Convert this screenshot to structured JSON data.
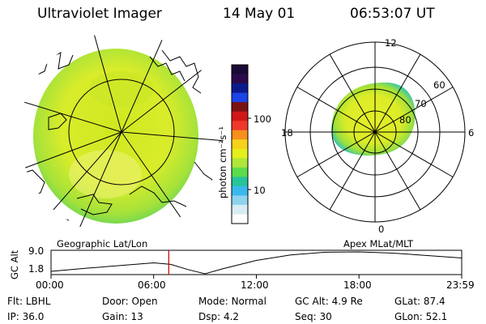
{
  "header": {
    "instrument": "Ultraviolet Imager",
    "date": "14 May 01",
    "time": "06:53:07 UT"
  },
  "colorbar": {
    "unit_label": "photon cm⁻²s⁻¹",
    "tick_labels": [
      "100",
      "10"
    ],
    "colors": [
      "#1b0a35",
      "#2b0a4a",
      "#0b1a8c",
      "#1c44e6",
      "#7a1212",
      "#d01818",
      "#f0382a",
      "#f5901c",
      "#f7d21c",
      "#e6ef1a",
      "#aee63a",
      "#5cdc4a",
      "#26c49a",
      "#3ab8ee",
      "#8ed3ee",
      "#d8ecf3",
      "#ffffff"
    ]
  },
  "left_map": {
    "caption": "Geographic Lat/Lon"
  },
  "right_map": {
    "caption": "Apex MLat/MLT",
    "mlt_labels": {
      "top": "12",
      "left": "18",
      "right": "6",
      "bottom": "0"
    },
    "lat_labels": [
      "60",
      "70",
      "80"
    ]
  },
  "altitude_plot": {
    "ylabel": "GC Alt",
    "ytick_labels": [
      "9.0",
      "1.8"
    ],
    "xtick_labels": [
      "00:00",
      "06:00",
      "12:00",
      "18:00",
      "23:59"
    ],
    "marker_time": "06:53",
    "marker_color": "#cc0000"
  },
  "footer": {
    "row1": {
      "flt_label": "Flt:",
      "flt_value": "LBHL",
      "door_label": "Door:",
      "door_value": "Open",
      "mode_label": "Mode:",
      "mode_value": "Normal",
      "gcalt_label": "GC Alt:",
      "gcalt_value": "4.9 Re",
      "glat_label": "GLat:",
      "glat_value": "87.4"
    },
    "row2": {
      "ip_label": "IP:",
      "ip_value": "36.0",
      "gain_label": "Gain:",
      "gain_value": "13",
      "dsp_label": "Dsp:",
      "dsp_value": "4.2",
      "seq_label": "Seq:",
      "seq_value": "30",
      "glon_label": "GLon:",
      "glon_value": "52.1"
    }
  }
}
